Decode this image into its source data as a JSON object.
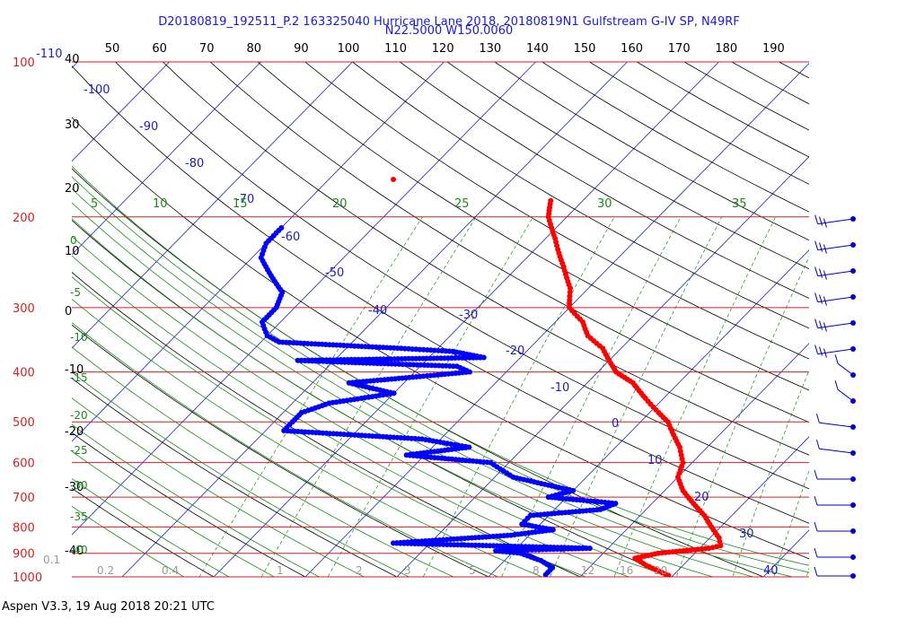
{
  "header": {
    "title_line1": "D20180819_192511_P.2 163325040 Hurricane Lane 2018, 20180819N1 Gulfstream G-IV SP, N49RF",
    "title_line2": "N22.5000 W150.0060"
  },
  "footer": {
    "text": "Aspen V3.3, 19 Aug 2018  20:21 UTC"
  },
  "colors": {
    "isobar": "#d42020",
    "isotherm": "#2020c0",
    "dry_adiabat": "#000000",
    "moist_adiabat": "#1a8a1a",
    "mixing_ratio": "#1a8a1a",
    "temperature": "#ff0000",
    "dewpoint": "#0000ff",
    "top_axis": "#000000",
    "title": "#1a1ad6"
  },
  "chart_data": {
    "type": "skew-t",
    "top_axis_ticks": [
      "50",
      "60",
      "70",
      "80",
      "90",
      "100",
      "110",
      "120",
      "130",
      "140",
      "150",
      "160",
      "170",
      "180",
      "190"
    ],
    "pressure_labels": [
      "100",
      "200",
      "300",
      "400",
      "500",
      "600",
      "700",
      "800",
      "900",
      "1000"
    ],
    "height_labels": [
      "40",
      "30",
      "20",
      "10",
      "0",
      "-10",
      "-20",
      "-30",
      "-40"
    ],
    "isotherm_labels": [
      "-110",
      "-100",
      "-90",
      "-80",
      "-70",
      "-60",
      "-50",
      "-40",
      "-30",
      "-20",
      "-10",
      "0",
      "10",
      "20",
      "30",
      "40"
    ],
    "moist_adiabat_labels": [
      "5",
      "10",
      "15",
      "20",
      "25",
      "30",
      "35"
    ],
    "mixing_ratio_labels": [
      "0.1",
      "0.2",
      "0.4",
      "1",
      "2",
      "3",
      "5",
      "8",
      "12",
      "16",
      "20"
    ],
    "green_left_labels": [
      "0",
      "-5",
      "-10",
      "-15",
      "-20",
      "-25",
      "-30",
      "-35",
      "-40"
    ],
    "temperature": [
      [
        186,
        -43.5
      ],
      [
        200,
        -42
      ],
      [
        220,
        -39
      ],
      [
        250,
        -35
      ],
      [
        275,
        -32
      ],
      [
        300,
        -30
      ],
      [
        320,
        -27
      ],
      [
        340,
        -25
      ],
      [
        360,
        -22
      ],
      [
        380,
        -20
      ],
      [
        400,
        -18
      ],
      [
        420,
        -15
      ],
      [
        450,
        -12
      ],
      [
        480,
        -9
      ],
      [
        500,
        -7
      ],
      [
        530,
        -5
      ],
      [
        560,
        -3
      ],
      [
        600,
        -1
      ],
      [
        640,
        0
      ],
      [
        680,
        2
      ],
      [
        720,
        4.5
      ],
      [
        760,
        7
      ],
      [
        800,
        9
      ],
      [
        840,
        11
      ],
      [
        870,
        12
      ],
      [
        880,
        11
      ],
      [
        900,
        6
      ],
      [
        920,
        4
      ],
      [
        950,
        6
      ],
      [
        1000,
        10
      ]
    ],
    "dewpoint": [
      [
        210,
        -70
      ],
      [
        225,
        -70
      ],
      [
        240,
        -69
      ],
      [
        260,
        -66
      ],
      [
        280,
        -63
      ],
      [
        300,
        -62
      ],
      [
        320,
        -62
      ],
      [
        340,
        -60
      ],
      [
        350,
        -58
      ],
      [
        360,
        -44
      ],
      [
        365,
        -38
      ],
      [
        375,
        -34
      ],
      [
        380,
        -54
      ],
      [
        390,
        -36
      ],
      [
        400,
        -34
      ],
      [
        420,
        -46
      ],
      [
        440,
        -40
      ],
      [
        460,
        -46
      ],
      [
        480,
        -48
      ],
      [
        500,
        -48
      ],
      [
        520,
        -48
      ],
      [
        540,
        -32
      ],
      [
        560,
        -26
      ],
      [
        580,
        -32
      ],
      [
        600,
        -22
      ],
      [
        640,
        -18
      ],
      [
        680,
        -10
      ],
      [
        700,
        -12
      ],
      [
        720,
        -4
      ],
      [
        740,
        -5
      ],
      [
        760,
        -12
      ],
      [
        790,
        -12
      ],
      [
        810,
        -8
      ],
      [
        830,
        -12
      ],
      [
        860,
        -24
      ],
      [
        880,
        -2
      ],
      [
        890,
        -12
      ],
      [
        900,
        -9
      ],
      [
        930,
        -6
      ],
      [
        960,
        -4
      ],
      [
        1000,
        -4
      ]
    ]
  }
}
